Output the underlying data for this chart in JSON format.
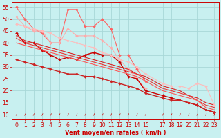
{
  "bg_color": "#c8f0f0",
  "grid_color": "#a8d8d8",
  "xlabel": "Vent moyen/en rafales ( km/h )",
  "xlim": [
    -0.5,
    23.5
  ],
  "ylim": [
    8,
    57
  ],
  "yticks": [
    10,
    15,
    20,
    25,
    30,
    35,
    40,
    45,
    50,
    55
  ],
  "xtick_positions": [
    0,
    1,
    2,
    3,
    4,
    5,
    6,
    7,
    8,
    9,
    10,
    11,
    12,
    13,
    14,
    15,
    17,
    18,
    19,
    20,
    21,
    22,
    23
  ],
  "xtick_labels": [
    "0",
    "1",
    "2",
    "3",
    "4",
    "5",
    "6",
    "7",
    "8",
    "9",
    "10",
    "11",
    "12",
    "13",
    "14",
    "15",
    "17",
    "18",
    "19",
    "20",
    "21",
    "22",
    "23"
  ],
  "series": [
    {
      "x": [
        0,
        1,
        2,
        3,
        4,
        5,
        6,
        7,
        8,
        9,
        10,
        11,
        12,
        13,
        14,
        15
      ],
      "y": [
        55,
        50,
        46,
        44,
        40,
        40,
        54,
        54,
        47,
        47,
        50,
        46,
        35,
        35,
        29,
        24
      ],
      "color": "#ff6060",
      "lw": 0.8,
      "marker": "D",
      "ms": 2.0
    },
    {
      "x": [
        0,
        1,
        2,
        3,
        4,
        5,
        6,
        7,
        8,
        9,
        10,
        11,
        12,
        13,
        14,
        15
      ],
      "y": [
        51,
        47,
        45,
        45,
        40,
        40,
        46,
        43,
        43,
        43,
        41,
        38,
        33,
        29,
        25,
        21
      ],
      "color": "#ffaaaa",
      "lw": 0.8,
      "marker": "D",
      "ms": 2.0
    },
    {
      "x": [
        0,
        1,
        2,
        3,
        4,
        5,
        6,
        7,
        8,
        9,
        10,
        11,
        12,
        13,
        14,
        15,
        17,
        18,
        19,
        20,
        21,
        22,
        23
      ],
      "y": [
        44,
        40,
        40,
        37,
        35,
        33,
        34,
        33,
        35,
        36,
        35,
        35,
        32,
        26,
        25,
        20,
        18,
        17,
        16,
        15,
        14,
        12,
        11
      ],
      "color": "#cc0000",
      "lw": 1.0,
      "marker": "D",
      "ms": 2.0
    },
    {
      "x": [
        0,
        1,
        2,
        3,
        4,
        5,
        6,
        7,
        8,
        9,
        10,
        11,
        12,
        13,
        14,
        15,
        17,
        18,
        19,
        20,
        21,
        22,
        23
      ],
      "y": [
        43,
        41,
        40,
        39,
        38,
        37,
        36,
        35,
        34,
        33,
        32,
        31,
        30,
        29,
        27,
        26,
        22,
        21,
        20,
        18,
        17,
        15,
        14
      ],
      "color": "#dd2222",
      "lw": 0.8,
      "marker": null,
      "ms": 0
    },
    {
      "x": [
        0,
        1,
        2,
        3,
        4,
        5,
        6,
        7,
        8,
        9,
        10,
        11,
        12,
        13,
        14,
        15,
        17,
        18,
        19,
        20,
        21,
        22,
        23
      ],
      "y": [
        42,
        40,
        39,
        38,
        37,
        36,
        35,
        34,
        33,
        32,
        31,
        30,
        29,
        28,
        27,
        25,
        21,
        20,
        19,
        18,
        16,
        14,
        13
      ],
      "color": "#ee3333",
      "lw": 0.8,
      "marker": null,
      "ms": 0
    },
    {
      "x": [
        0,
        1,
        2,
        3,
        4,
        5,
        6,
        7,
        8,
        9,
        10,
        11,
        12,
        13,
        14,
        15,
        17,
        18,
        19,
        20,
        21,
        22,
        23
      ],
      "y": [
        40,
        39,
        38,
        37,
        36,
        35,
        34,
        33,
        32,
        31,
        30,
        29,
        28,
        27,
        26,
        24,
        20,
        19,
        18,
        17,
        16,
        13,
        12
      ],
      "color": "#ff5555",
      "lw": 0.8,
      "marker": null,
      "ms": 0
    },
    {
      "x": [
        0,
        1,
        2,
        3,
        4,
        5,
        6,
        7,
        8,
        9,
        10,
        11,
        12,
        13,
        14,
        15,
        17,
        18,
        19,
        20,
        21,
        22,
        23
      ],
      "y": [
        33,
        32,
        31,
        30,
        29,
        28,
        27,
        27,
        26,
        26,
        25,
        24,
        23,
        22,
        21,
        19,
        17,
        16,
        16,
        15,
        14,
        12,
        11
      ],
      "color": "#cc2222",
      "lw": 1.0,
      "marker": "D",
      "ms": 2.0
    },
    {
      "x": [
        0,
        1,
        2,
        3,
        4,
        5,
        6,
        7,
        8,
        9,
        10,
        11,
        12,
        13,
        14,
        15,
        17,
        18,
        19,
        20,
        21,
        22,
        23
      ],
      "y": [
        48,
        47,
        46,
        45,
        44,
        42,
        41,
        40,
        39,
        38,
        36,
        35,
        33,
        32,
        30,
        27,
        23,
        22,
        22,
        21,
        23,
        22,
        14
      ],
      "color": "#ffbbbb",
      "lw": 0.8,
      "marker": "D",
      "ms": 2.0
    }
  ],
  "xlabel_color": "#cc0000",
  "xlabel_fontsize": 6,
  "tick_fontsize": 5.5,
  "tick_color": "#cc0000",
  "spine_color": "#cc0000"
}
